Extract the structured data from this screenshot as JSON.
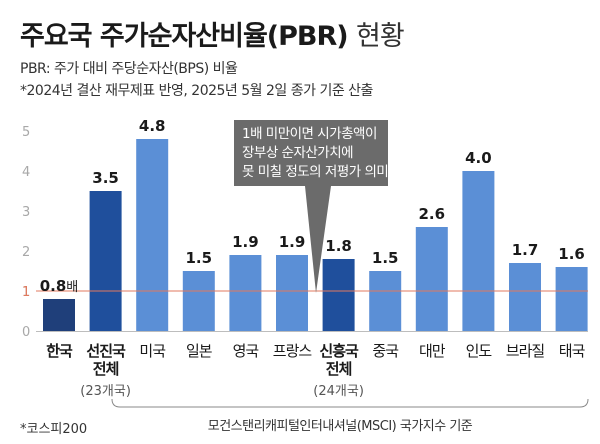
{
  "header": {
    "title_main": "주요국 주가순자산비율(PBR)",
    "title_suffix": "현황",
    "subtitle_1": "PBR: 주가 대비 주당순자산(BPS) 비율",
    "subtitle_2": "*2024년 결산 재무제표 반영, 2025년 5월 2일 종가 기준 산출"
  },
  "chart_data": {
    "type": "bar",
    "ylim": [
      0,
      5
    ],
    "yticks": [
      "0",
      "1",
      "2",
      "3",
      "4",
      "5"
    ],
    "reference_line": {
      "value": 1,
      "label": "1",
      "color": "#e07a5f"
    },
    "categories": [
      {
        "name": "한국",
        "value": 0.8,
        "label": "0.8",
        "unit": "배",
        "color": "#1f3f7a",
        "strong": true,
        "lines": [
          "한국"
        ]
      },
      {
        "name": "선진국 전체",
        "value": 3.5,
        "label": "3.5",
        "color": "#1f4f9c",
        "strong": true,
        "lines": [
          "선진국",
          "전체"
        ]
      },
      {
        "name": "미국",
        "value": 4.8,
        "label": "4.8",
        "color": "#5b8fd6",
        "strong": false,
        "lines": [
          "미국"
        ]
      },
      {
        "name": "일본",
        "value": 1.5,
        "label": "1.5",
        "color": "#5b8fd6",
        "strong": false,
        "lines": [
          "일본"
        ]
      },
      {
        "name": "영국",
        "value": 1.9,
        "label": "1.9",
        "color": "#5b8fd6",
        "strong": false,
        "lines": [
          "영국"
        ]
      },
      {
        "name": "프랑스",
        "value": 1.9,
        "label": "1.9",
        "color": "#5b8fd6",
        "strong": false,
        "lines": [
          "프랑스"
        ]
      },
      {
        "name": "신흥국 전체",
        "value": 1.8,
        "label": "1.8",
        "color": "#1f4f9c",
        "strong": true,
        "lines": [
          "신흥국",
          "전체"
        ]
      },
      {
        "name": "중국",
        "value": 1.5,
        "label": "1.5",
        "color": "#5b8fd6",
        "strong": false,
        "lines": [
          "중국"
        ]
      },
      {
        "name": "대만",
        "value": 2.6,
        "label": "2.6",
        "color": "#5b8fd6",
        "strong": false,
        "lines": [
          "대만"
        ]
      },
      {
        "name": "인도",
        "value": 4.0,
        "label": "4.0",
        "color": "#5b8fd6",
        "strong": false,
        "lines": [
          "인도"
        ]
      },
      {
        "name": "브라질",
        "value": 1.7,
        "label": "1.7",
        "color": "#5b8fd6",
        "strong": false,
        "lines": [
          "브라질"
        ]
      },
      {
        "name": "태국",
        "value": 1.6,
        "label": "1.6",
        "color": "#5b8fd6",
        "strong": false,
        "lines": [
          "태국"
        ]
      }
    ],
    "group_counts": [
      {
        "for": "선진국 전체",
        "text": "(23개국)"
      },
      {
        "for": "신흥국 전체",
        "text": "(24개국)"
      }
    ],
    "callout": {
      "lines": [
        "1배 미만이면 시가총액이",
        "장부상 순자산가치에",
        "못 미칠 정도의 저평가 의미"
      ],
      "color": "#6b6b6b"
    },
    "bracket_label": "모건스탠리캐피털인터내셔널(MSCI) 국가지수 기준"
  },
  "footnote": "*코스피200"
}
